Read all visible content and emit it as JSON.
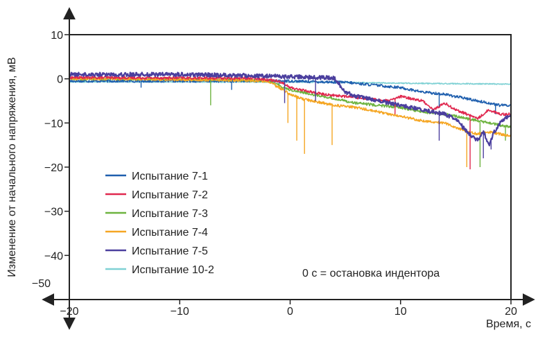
{
  "chart_data": {
    "type": "line",
    "xlabel": "Время, с",
    "ylabel": "Изменение от начального напряжения, мВ",
    "xlim": [
      -20,
      20
    ],
    "ylim": [
      -50,
      10
    ],
    "x_ticks": [
      -20,
      -10,
      0,
      10,
      20
    ],
    "x_tick_labels": [
      "−20",
      "−10",
      "0",
      "10",
      "20"
    ],
    "y_ticks": [
      10,
      0,
      -10,
      -20,
      -30,
      -40,
      -50
    ],
    "y_tick_labels": [
      "10",
      "0",
      "−10",
      "−20",
      "−30",
      "−40",
      "−50"
    ],
    "grid": false,
    "legend_position": "lower-left",
    "annotation": "0 с = остановка индентора",
    "series": [
      {
        "name": "Испытание 7-1",
        "color": "#1f5fae",
        "x": [
          -20,
          -15,
          -10,
          -5,
          0,
          3,
          5,
          8,
          10,
          12,
          14,
          15,
          16,
          17,
          18,
          19,
          20
        ],
        "y": [
          -0.5,
          -0.5,
          -0.5,
          -0.5,
          -0.5,
          -0.7,
          -0.8,
          -1.5,
          -2,
          -3,
          -3.5,
          -4,
          -4.5,
          -5,
          -5.5,
          -6,
          -6
        ],
        "spikes": [
          [
            -13.5,
            -2
          ],
          [
            -5.3,
            -2.5
          ],
          [
            -1,
            -1.8
          ],
          [
            13.5,
            -6.5
          ],
          [
            18.6,
            -8
          ]
        ]
      },
      {
        "name": "Испытание 7-2",
        "color": "#e0284f",
        "x": [
          -20,
          -10,
          -3,
          -1,
          0,
          2,
          3,
          5,
          7,
          9,
          10,
          11,
          12,
          13,
          14,
          15,
          16,
          17,
          18,
          19,
          20
        ],
        "y": [
          0.3,
          0.2,
          0.1,
          -0.5,
          -2,
          -3,
          -3.5,
          -4,
          -4.5,
          -5,
          -4,
          -4.5,
          -5,
          -7,
          -5.5,
          -7,
          -8,
          -9,
          -7,
          -8,
          -8
        ],
        "spikes": [
          [
            16.3,
            -20.5
          ],
          [
            9.5,
            -8
          ]
        ]
      },
      {
        "name": "Испытание 7-3",
        "color": "#6db33f",
        "x": [
          -20,
          -15,
          -10,
          -5,
          -2,
          0,
          2,
          4,
          6,
          8,
          10,
          12,
          14,
          15,
          16,
          17,
          18,
          19,
          20
        ],
        "y": [
          0,
          0,
          0,
          -0.2,
          -0.5,
          -2.5,
          -3.5,
          -4.5,
          -5.5,
          -6,
          -6.5,
          -7.5,
          -8,
          -8.5,
          -9,
          -9.5,
          -10,
          -10.5,
          -11
        ],
        "spikes": [
          [
            -7.2,
            -6
          ],
          [
            17.2,
            -20
          ],
          [
            19.5,
            -14
          ]
        ]
      },
      {
        "name": "Испытание 7-4",
        "color": "#f5a623",
        "x": [
          -20,
          -15,
          -10,
          -5,
          -2,
          0,
          1,
          2,
          4,
          6,
          8,
          10,
          12,
          14,
          15,
          16,
          17,
          18,
          19,
          20
        ],
        "y": [
          0,
          0,
          -0.2,
          -0.3,
          -0.5,
          -3.5,
          -4.5,
          -5,
          -6,
          -6.5,
          -7.5,
          -8.5,
          -9.5,
          -10,
          -11,
          -12,
          -12.5,
          -12,
          -12.5,
          -13
        ],
        "spikes": [
          [
            -0.2,
            -10
          ],
          [
            0.6,
            -14
          ],
          [
            1.3,
            -17
          ],
          [
            3.8,
            -15
          ],
          [
            16,
            -20
          ]
        ]
      },
      {
        "name": "Испытание 7-5",
        "color": "#4b3f9e",
        "x": [
          -20,
          -15,
          -10,
          -5,
          0,
          2,
          4,
          5,
          6,
          8,
          10,
          12,
          14,
          15,
          16,
          17,
          17.5,
          18,
          18.5,
          19,
          19.5,
          20
        ],
        "y": [
          1,
          1,
          1,
          0.8,
          0.5,
          0.3,
          0.2,
          -3,
          -4,
          -5,
          -6,
          -7,
          -8,
          -9,
          -12,
          -14,
          -12,
          -15,
          -12,
          -10,
          -9,
          -8
        ],
        "spikes": [
          [
            -0.5,
            -5.5
          ],
          [
            2.3,
            -5
          ],
          [
            13.5,
            -14
          ],
          [
            17.5,
            -18
          ],
          [
            18.2,
            -16
          ]
        ]
      },
      {
        "name": "Испытание 10-2",
        "color": "#7fd1d4",
        "x": [
          -20,
          -10,
          0,
          5,
          10,
          15,
          20
        ],
        "y": [
          -0.7,
          -0.7,
          -0.7,
          -0.8,
          -1,
          -1.1,
          -1.2
        ],
        "spikes": []
      }
    ]
  }
}
